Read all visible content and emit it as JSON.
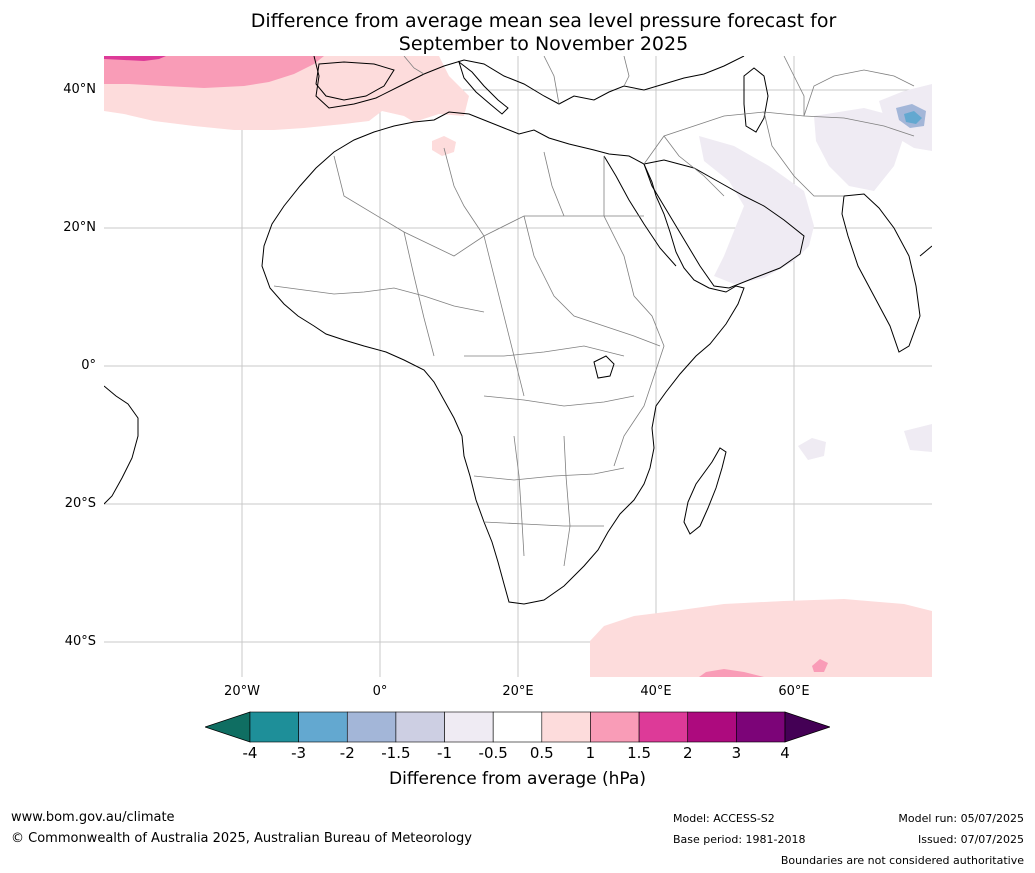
{
  "title_line1": "Difference from average mean sea level pressure forecast for",
  "title_line2": "September to November 2025",
  "axes": {
    "lat_labels": [
      "40°N",
      "20°N",
      "0°",
      "20°S",
      "40°S"
    ],
    "lon_labels": [
      "20°W",
      "0°",
      "20°E",
      "40°E",
      "60°E"
    ]
  },
  "map_extent": {
    "lon_min": -40,
    "lon_max": 80,
    "lat_min": -45,
    "lat_max": 45
  },
  "colorbar": {
    "label": "Difference from average (hPa)",
    "tick_labels": [
      "-4",
      "-3",
      "-2",
      "-1.5",
      "-1",
      "-0.5",
      "0.5",
      "1",
      "1.5",
      "2",
      "3",
      "4"
    ],
    "colors": [
      "#0f6e62",
      "#1e8f99",
      "#63a8d0",
      "#a3b6d8",
      "#cdcfe3",
      "#efebf3",
      "#ffffff",
      "#fddcdc",
      "#f99cb7",
      "#dd3a98",
      "#ad0a7e",
      "#7c0478",
      "#440055"
    ]
  },
  "legend": {
    "website": "www.bom.gov.au/climate",
    "copyright": "© Commonwealth of Australia 2025, Australian Bureau of Meteorology",
    "model": "Model: ACCESS-S2",
    "base_period": "Base period: 1981-2018",
    "model_run": "Model run: 05/07/2025",
    "issued": "Issued: 07/07/2025",
    "disclaimer": "Boundaries are not considered authoritative"
  }
}
